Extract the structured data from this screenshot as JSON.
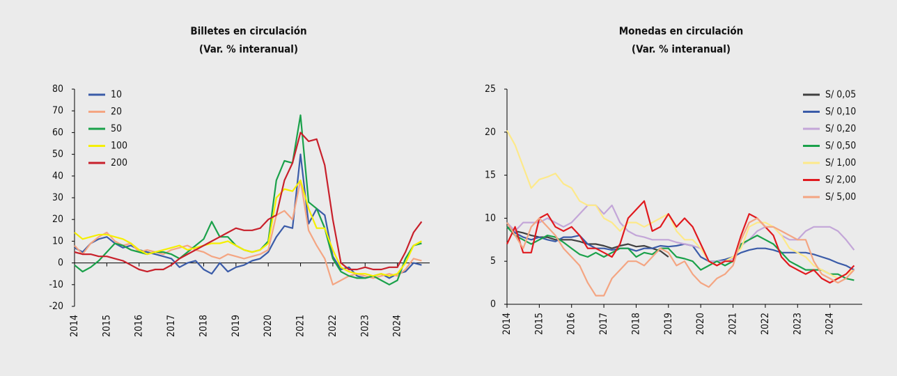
{
  "chart_data": [
    {
      "type": "line",
      "title": "Billetes en circulación",
      "subtitle": "(Var. % interanual)",
      "x": [
        2014,
        2014.25,
        2014.5,
        2014.75,
        2015,
        2015.25,
        2015.5,
        2015.75,
        2016,
        2016.25,
        2016.5,
        2016.75,
        2017,
        2017.25,
        2017.5,
        2017.75,
        2018,
        2018.25,
        2018.5,
        2018.75,
        2019,
        2019.25,
        2019.5,
        2019.75,
        2020,
        2020.25,
        2020.5,
        2020.75,
        2021,
        2021.25,
        2021.5,
        2021.75,
        2022,
        2022.25,
        2022.5,
        2022.75,
        2023,
        2023.25,
        2023.5,
        2023.75,
        2024,
        2024.25,
        2024.5,
        2024.75
      ],
      "xlim": [
        2014,
        2025
      ],
      "xticks": [
        2014,
        2015,
        2016,
        2017,
        2018,
        2019,
        2020,
        2021,
        2022,
        2023,
        2024
      ],
      "ylim": [
        -20,
        80
      ],
      "yticks": [
        -20,
        -10,
        0,
        10,
        20,
        30,
        40,
        50,
        60,
        70,
        80
      ],
      "legend": "upper left",
      "series": [
        {
          "name": "10",
          "color": "#3a5ba8",
          "values": [
            7,
            5,
            9,
            11,
            12,
            9,
            7,
            8,
            6,
            5,
            4,
            3,
            2,
            -2,
            0,
            1,
            -3,
            -5,
            0,
            -4,
            -2,
            -1,
            1,
            2,
            5,
            12,
            17,
            16,
            50,
            18,
            25,
            22,
            3,
            -3,
            -2,
            -6,
            -7,
            -6,
            -5,
            -7,
            -5,
            -4,
            0,
            -1
          ]
        },
        {
          "name": "20",
          "color": "#f4a582",
          "values": [
            8,
            4,
            9,
            12,
            14,
            10,
            8,
            9,
            5,
            6,
            5,
            4,
            6,
            7,
            8,
            6,
            5,
            3,
            2,
            4,
            3,
            2,
            3,
            4,
            6,
            22,
            24,
            20,
            38,
            15,
            8,
            2,
            -10,
            -8,
            -6,
            -5,
            -6,
            -7,
            -6,
            -5,
            -6,
            -3,
            2,
            1
          ]
        },
        {
          "name": "50",
          "color": "#1aa14a",
          "values": [
            -1,
            -4,
            -2,
            1,
            5,
            9,
            8,
            6,
            5,
            4,
            5,
            5,
            4,
            2,
            5,
            8,
            11,
            19,
            12,
            12,
            8,
            6,
            5,
            6,
            10,
            38,
            47,
            46,
            68,
            28,
            25,
            16,
            2,
            -4,
            -6,
            -7,
            -7,
            -6,
            -8,
            -10,
            -8,
            2,
            8,
            9
          ]
        },
        {
          "name": "100",
          "color": "#f5ef00",
          "values": [
            14,
            11,
            12,
            13,
            13,
            12,
            11,
            9,
            6,
            4,
            5,
            6,
            7,
            8,
            6,
            7,
            8,
            9,
            9,
            10,
            8,
            6,
            5,
            6,
            9,
            30,
            34,
            33,
            38,
            25,
            16,
            16,
            6,
            -2,
            -4,
            -5,
            -5,
            -6,
            -5,
            -6,
            -5,
            0,
            8,
            10
          ]
        },
        {
          "name": "200",
          "color": "#c8202b",
          "values": [
            5,
            4,
            4,
            3,
            3,
            2,
            1,
            -1,
            -3,
            -4,
            -3,
            -3,
            -1,
            2,
            4,
            6,
            8,
            10,
            12,
            14,
            16,
            15,
            15,
            16,
            20,
            22,
            38,
            46,
            60,
            56,
            57,
            45,
            20,
            0,
            -3,
            -3,
            -2,
            -3,
            -3,
            -2,
            -2,
            5,
            14,
            19
          ]
        }
      ]
    },
    {
      "type": "line",
      "title": "Monedas en circulación",
      "subtitle": "(Var. % interanual)",
      "x": [
        2014,
        2014.25,
        2014.5,
        2014.75,
        2015,
        2015.25,
        2015.5,
        2015.75,
        2016,
        2016.25,
        2016.5,
        2016.75,
        2017,
        2017.25,
        2017.5,
        2017.75,
        2018,
        2018.25,
        2018.5,
        2018.75,
        2019,
        2019.25,
        2019.5,
        2019.75,
        2020,
        2020.25,
        2020.5,
        2020.75,
        2021,
        2021.25,
        2021.5,
        2021.75,
        2022,
        2022.25,
        2022.5,
        2022.75,
        2023,
        2023.25,
        2023.5,
        2023.75,
        2024,
        2024.25,
        2024.5,
        2024.75
      ],
      "xlim": [
        2014,
        2025
      ],
      "xticks": [
        2014,
        2015,
        2016,
        2017,
        2018,
        2019,
        2020,
        2021,
        2022,
        2023,
        2024
      ],
      "ylim": [
        0,
        25
      ],
      "yticks": [
        0,
        5,
        10,
        15,
        20,
        25
      ],
      "legend": "upper right",
      "series": [
        {
          "name": "S/ 0,05",
          "color": "#404040",
          "values": [
            9,
            8.5,
            8.3,
            8,
            7.8,
            7.8,
            7.5,
            7.5,
            7.5,
            7.3,
            7,
            7,
            6.8,
            6.5,
            6.8,
            7,
            6.7,
            6.8,
            6.5,
            6.2,
            5.5,
            null,
            null,
            null,
            null,
            null,
            null,
            null,
            null,
            null,
            null,
            null,
            null,
            null,
            null,
            null,
            null,
            null,
            null,
            null,
            null,
            null,
            null,
            null
          ]
        },
        {
          "name": "S/ 0,10",
          "color": "#3a5ba8",
          "values": [
            9,
            8.3,
            7.8,
            7.5,
            7.8,
            7.5,
            7.3,
            7.8,
            7.8,
            8,
            7,
            6.5,
            6.5,
            6.3,
            6.5,
            6.5,
            6.2,
            6.5,
            6.5,
            6.8,
            6.7,
            6.8,
            7,
            6.8,
            5.5,
            5,
            5,
            5.2,
            5.5,
            6,
            6.3,
            6.5,
            6.5,
            6.3,
            6,
            6,
            6,
            6,
            5.8,
            5.5,
            5.2,
            4.8,
            4.5,
            4
          ]
        },
        {
          "name": "S/ 0,20",
          "color": "#c3a6d8",
          "values": [
            9.5,
            8.5,
            9.5,
            9.5,
            9.5,
            10,
            9.5,
            9,
            9.5,
            10.5,
            11.5,
            11.5,
            10.5,
            11.5,
            9.5,
            8.5,
            8,
            7.8,
            7.5,
            7.5,
            7.5,
            7.2,
            7,
            6.8,
            6.5,
            5,
            5,
            5,
            5.3,
            6.8,
            7.5,
            8.5,
            9,
            9,
            8,
            7.5,
            7.5,
            8.5,
            9,
            9,
            9,
            8.5,
            7.5,
            6.3
          ]
        },
        {
          "name": "S/ 0,50",
          "color": "#1aa14a",
          "values": [
            9,
            8,
            7.5,
            7,
            7.5,
            8,
            7.8,
            7.2,
            6.5,
            5.8,
            5.5,
            6,
            5.5,
            6,
            6.5,
            6.5,
            5.5,
            6,
            5.8,
            6.5,
            6.5,
            5.5,
            5.3,
            5,
            4,
            4.5,
            5,
            4.5,
            5,
            7,
            7.5,
            8,
            7.5,
            7,
            6,
            5,
            4.5,
            4,
            4,
            4,
            3.5,
            3.5,
            3,
            2.8
          ]
        },
        {
          "name": "S/ 1,00",
          "color": "#fde98a",
          "values": [
            20.2,
            18.5,
            16,
            13.5,
            14.5,
            14.8,
            15.2,
            14,
            13.5,
            12,
            11.5,
            11.5,
            10,
            9.5,
            8.5,
            9.5,
            9.5,
            9,
            9.5,
            10,
            10.5,
            8.5,
            7.5,
            7.5,
            6.5,
            5,
            4.5,
            5,
            5.5,
            6.5,
            9,
            9.5,
            9.5,
            9,
            8,
            6.5,
            6,
            5.5,
            4.5,
            4,
            3.5,
            3,
            3.5,
            4
          ]
        },
        {
          "name": "S/ 2,00",
          "color": "#e0191e",
          "values": [
            7,
            9,
            6,
            6,
            10,
            10.5,
            9,
            8.5,
            9,
            8,
            6.5,
            6.5,
            6,
            5.5,
            7,
            10,
            11,
            12,
            8.5,
            9,
            10.5,
            9,
            10,
            9,
            7,
            5,
            4.5,
            5,
            5,
            8,
            10.5,
            10,
            9,
            8,
            5.5,
            4.5,
            4,
            3.5,
            4,
            3,
            2.5,
            3,
            3.5,
            4.5
          ]
        },
        {
          "name": "S/ 5,00",
          "color": "#f4a582",
          "values": [
            9.5,
            8,
            6.5,
            9,
            10,
            9,
            8,
            6.5,
            5.5,
            4.5,
            2.5,
            1,
            1,
            3,
            4,
            5,
            5,
            4.5,
            5.5,
            6.5,
            6,
            4.5,
            5,
            3.5,
            2.5,
            2,
            3,
            3.5,
            4.5,
            7.5,
            9.5,
            10,
            9,
            9,
            8.5,
            8,
            7.5,
            7.5,
            5,
            3.5,
            3,
            2.5,
            3,
            4
          ]
        }
      ]
    }
  ]
}
